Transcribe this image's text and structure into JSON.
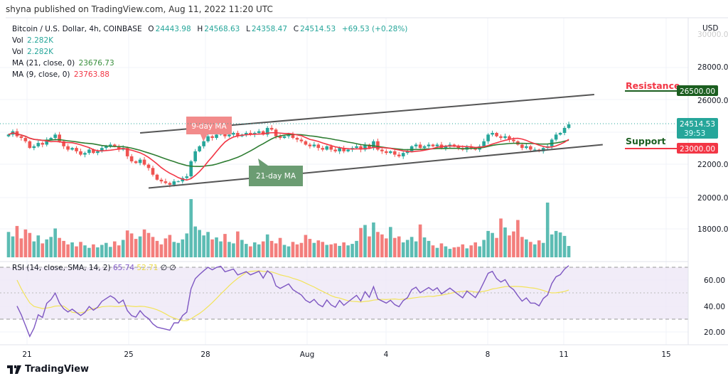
{
  "header": {
    "published": "shyna published on TradingView.com, Aug 11, 2022 11:20 UTC"
  },
  "legend": {
    "symbol": "Bitcoin / U.S. Dollar, 4h, COINBASE",
    "o_label": "O",
    "o": "24443.98",
    "h_label": "H",
    "h": "24568.63",
    "l_label": "L",
    "l": "24358.47",
    "c_label": "C",
    "c": "24514.53",
    "change": "+69.53 (+0.28%)",
    "vol1_label": "Vol",
    "vol1": "2.282K",
    "vol2_label": "Vol",
    "vol2": "2.282K",
    "ma21_label": "MA (21, close, 0)",
    "ma21": "23676.73",
    "ma9_label": "MA (9, close, 0)",
    "ma9": "23763.88"
  },
  "rsi_legend": {
    "label": "RSI (14, close, SMA, 14, 2)",
    "rsi": "65.74",
    "sma": "52.71",
    "extra1": "∅",
    "extra2": "∅"
  },
  "axis": {
    "currency": "USD",
    "price_ticks": [
      "30000.00",
      "28000.00",
      "26000.00",
      "22000.00",
      "20000.00",
      "18000.00"
    ],
    "rsi_ticks": [
      "60.00",
      "40.00",
      "20.00"
    ],
    "x_ticks": [
      "21",
      "25",
      "28",
      "Aug",
      "4",
      "8",
      "11",
      "15"
    ]
  },
  "badges": {
    "resistance": "26500.00",
    "last_price": "24514.53",
    "countdown": "39:53",
    "support": "23000.00"
  },
  "annotations": {
    "resistance_label": "Resistance",
    "support_label": "Support",
    "ma9_label": "9-day MA",
    "ma21_label": "21-day MA"
  },
  "footer": {
    "brand": "TradingView"
  },
  "colors": {
    "up": "#26a69a",
    "down": "#ef5350",
    "ma9": "#f23645",
    "ma21": "#2e7d32",
    "rsi": "#7e57c2",
    "rsi_sma": "#f2e35a",
    "resistance": "#1b5e20",
    "support": "#f23645"
  },
  "chart_data": {
    "type": "candlestick",
    "title": "Bitcoin / U.S. Dollar, 4h, COINBASE",
    "interval": "4h",
    "start": "2022-07-20 06:00",
    "ylim": [
      16500,
      30500
    ],
    "closes": [
      23900,
      24100,
      23800,
      23700,
      23500,
      23100,
      23200,
      23400,
      23300,
      23600,
      23700,
      23900,
      23500,
      23200,
      23000,
      23100,
      22900,
      22700,
      22800,
      23000,
      22800,
      22900,
      23100,
      23200,
      23300,
      23200,
      23000,
      23100,
      22600,
      22300,
      22200,
      22400,
      22100,
      21900,
      21500,
      21200,
      21100,
      21000,
      20900,
      21100,
      21100,
      21300,
      21400,
      22300,
      22900,
      23200,
      23500,
      23800,
      23700,
      23900,
      24000,
      23800,
      23900,
      24000,
      23800,
      23900,
      24000,
      23900,
      24000,
      24100,
      23900,
      24300,
      24200,
      23800,
      23700,
      23800,
      23900,
      23700,
      23600,
      23500,
      23300,
      23200,
      23300,
      23100,
      23000,
      23200,
      23000,
      22900,
      23100,
      22900,
      23000,
      23100,
      23200,
      23000,
      23300,
      23100,
      23500,
      23000,
      22900,
      22800,
      22900,
      22700,
      22600,
      22800,
      22900,
      23200,
      23300,
      23100,
      23200,
      23300,
      23200,
      23300,
      23100,
      23200,
      23300,
      23200,
      23100,
      23000,
      23200,
      23100,
      23000,
      23200,
      23500,
      23900,
      24000,
      23800,
      23700,
      23800,
      23600,
      23500,
      23300,
      23100,
      23200,
      23000,
      23000,
      22900,
      23100,
      23200,
      23600,
      23900,
      24000,
      24300,
      24514.53
    ],
    "volumes_k": [
      5.1,
      4.2,
      6.3,
      3.8,
      5.6,
      4.9,
      3.2,
      4.4,
      2.8,
      3.6,
      4.1,
      5.8,
      3.9,
      3.3,
      2.6,
      3.0,
      2.2,
      3.1,
      2.4,
      1.9,
      2.6,
      2.0,
      2.5,
      2.9,
      2.1,
      3.2,
      2.4,
      3.5,
      5.4,
      4.8,
      3.7,
      4.2,
      5.6,
      4.9,
      4.1,
      3.3,
      2.6,
      3.8,
      4.5,
      3.1,
      2.9,
      3.6,
      4.8,
      11.7,
      6.2,
      5.5,
      4.4,
      5.1,
      3.6,
      4.0,
      3.2,
      4.7,
      3.1,
      2.8,
      5.2,
      3.5,
      2.7,
      2.2,
      3.0,
      2.6,
      3.2,
      4.6,
      3.3,
      2.8,
      3.9,
      2.5,
      2.2,
      3.1,
      2.6,
      2.9,
      4.5,
      3.7,
      2.9,
      3.4,
      3.1,
      2.5,
      2.6,
      2.8,
      2.3,
      3.0,
      2.4,
      2.7,
      3.3,
      5.9,
      6.5,
      4.2,
      7.0,
      5.1,
      4.6,
      3.8,
      6.1,
      3.9,
      4.2,
      3.0,
      3.5,
      4.1,
      3.2,
      6.6,
      4.0,
      3.3,
      2.4,
      1.9,
      2.8,
      2.2,
      1.7,
      2.0,
      2.1,
      2.6,
      1.8,
      2.4,
      3.0,
      2.2,
      3.5,
      5.3,
      4.9,
      3.9,
      7.8,
      6.0,
      4.4,
      5.2,
      7.5,
      4.1,
      3.6,
      3.1,
      2.6,
      3.4,
      2.9,
      11.0,
      4.6,
      5.3,
      5.0,
      4.3,
      2.282
    ],
    "trendlines": [
      {
        "name": "upper-channel",
        "from": {
          "index": 31,
          "price": 24000
        },
        "to": {
          "index": 138,
          "price": 26300
        }
      },
      {
        "name": "lower-channel",
        "from": {
          "index": 33,
          "price": 20700
        },
        "to": {
          "index": 140,
          "price": 23300
        }
      }
    ],
    "horizontal_levels": {
      "resistance": 26500,
      "support": 23000,
      "last": 24514.53
    },
    "rsi": {
      "period": 14,
      "sma": 14,
      "upper": 70,
      "lower": 30,
      "ylim": [
        15,
        80
      ],
      "last": 65.74,
      "sma_last": 52.71
    }
  }
}
